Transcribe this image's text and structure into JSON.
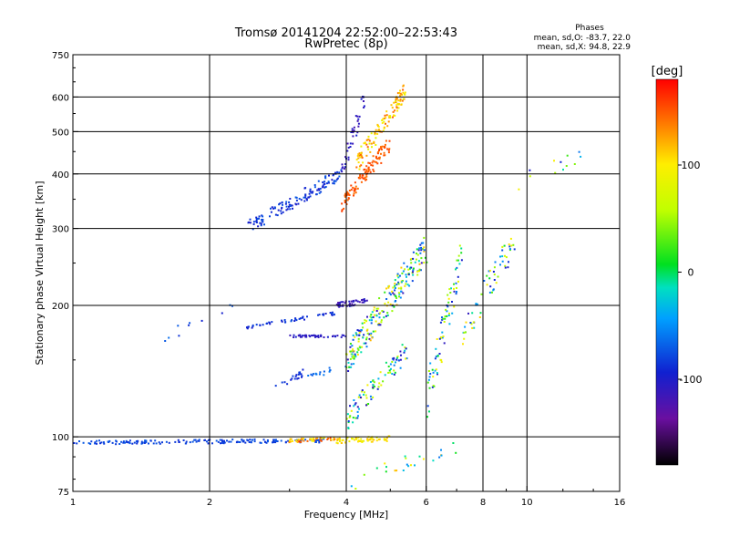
{
  "header": {
    "title": "Tromsø 20141204 22:52:00–22:53:43",
    "subtitle": "RwPretec (8p)",
    "phases_title": "Phases",
    "phases_o": "mean, sd,O: -83.7, 22.0",
    "phases_x": "mean, sd,X:  94.8, 22.9"
  },
  "colorbar": {
    "unit_label": "[deg]",
    "ticks": [
      {
        "value": 100,
        "label": "100"
      },
      {
        "value": 0,
        "label": "0"
      },
      {
        "value": -100,
        "label": "-100"
      }
    ],
    "range": [
      -180,
      180
    ]
  },
  "chart_data": {
    "type": "scatter",
    "xlabel": "Frequency [MHz]",
    "ylabel": "Stationary phase Virtual Height [km]",
    "x_scale": "log",
    "y_scale": "log",
    "xlim": [
      1,
      16
    ],
    "ylim": [
      75,
      750
    ],
    "grid": true,
    "x_ticks": [
      {
        "value": 1,
        "label": "1"
      },
      {
        "value": 2,
        "label": "2"
      },
      {
        "value": 4,
        "label": "4"
      },
      {
        "value": 6,
        "label": "6"
      },
      {
        "value": 8,
        "label": "8"
      },
      {
        "value": 10,
        "label": "10"
      },
      {
        "value": 16,
        "label": "16"
      }
    ],
    "y_ticks": [
      {
        "value": 75,
        "label": "75"
      },
      {
        "value": 100,
        "label": "100"
      },
      {
        "value": 200,
        "label": "200"
      },
      {
        "value": 300,
        "label": "300"
      },
      {
        "value": 400,
        "label": "400"
      },
      {
        "value": 500,
        "label": "500"
      },
      {
        "value": 600,
        "label": "600"
      },
      {
        "value": 750,
        "label": "750"
      }
    ],
    "x_gridlines": [
      2,
      4,
      6,
      8,
      10
    ],
    "y_gridlines": [
      100,
      200,
      300,
      400,
      500,
      600
    ],
    "series": [
      {
        "color_variable": "phase_deg",
        "clusters": [
          {
            "f1": 1.0,
            "f2": 3.6,
            "h1": 97,
            "h2": 98,
            "spread": 0.01,
            "phase": [
              -90,
              -70
            ],
            "n": 170
          },
          {
            "f1": 3.0,
            "f2": 3.8,
            "h1": 98,
            "h2": 99,
            "spread": 0.01,
            "phase": [
              90,
              170
            ],
            "n": 45
          },
          {
            "f1": 3.8,
            "f2": 5.0,
            "h1": 98,
            "h2": 99,
            "spread": 0.015,
            "phase": [
              80,
              120
            ],
            "n": 60
          },
          {
            "f1": 2.4,
            "f2": 3.9,
            "h1": 300,
            "h2": 400,
            "spread": 0.035,
            "phase": [
              -100,
              -70
            ],
            "n": 130
          },
          {
            "f1": 3.9,
            "f2": 4.4,
            "h1": 400,
            "h2": 600,
            "spread": 0.05,
            "phase": [
              -120,
              -95
            ],
            "n": 40
          },
          {
            "f1": 3.9,
            "f2": 5.0,
            "h1": 340,
            "h2": 470,
            "spread": 0.04,
            "phase": [
              140,
              160
            ],
            "n": 110
          },
          {
            "f1": 4.2,
            "f2": 5.4,
            "h1": 420,
            "h2": 620,
            "spread": 0.05,
            "phase": [
              80,
              150
            ],
            "n": 120
          },
          {
            "f1": 2.4,
            "f2": 3.8,
            "h1": 178,
            "h2": 192,
            "spread": 0.008,
            "phase": [
              -100,
              -75
            ],
            "n": 50
          },
          {
            "f1": 3.0,
            "f2": 4.0,
            "h1": 170,
            "h2": 170,
            "spread": 0.006,
            "phase": [
              -115,
              -95
            ],
            "n": 45
          },
          {
            "f1": 3.8,
            "f2": 4.5,
            "h1": 200,
            "h2": 205,
            "spread": 0.015,
            "phase": [
              -125,
              -100
            ],
            "n": 40
          },
          {
            "f1": 4.0,
            "f2": 6.0,
            "h1": 150,
            "h2": 270,
            "spread": 0.08,
            "phase": [
              -120,
              120
            ],
            "n": 230
          },
          {
            "f1": 2.8,
            "f2": 3.2,
            "h1": 130,
            "h2": 140,
            "spread": 0.02,
            "phase": [
              -95,
              -80
            ],
            "n": 20
          },
          {
            "f1": 3.3,
            "f2": 3.7,
            "h1": 138,
            "h2": 142,
            "spread": 0.015,
            "phase": [
              -70,
              -55
            ],
            "n": 15
          },
          {
            "f1": 4.0,
            "f2": 5.5,
            "h1": 110,
            "h2": 160,
            "spread": 0.06,
            "phase": [
              -120,
              100
            ],
            "n": 90
          },
          {
            "f1": 6.0,
            "f2": 7.2,
            "h1": 120,
            "h2": 260,
            "spread": 0.1,
            "phase": [
              -120,
              100
            ],
            "n": 80
          },
          {
            "f1": 7.2,
            "f2": 9.5,
            "h1": 170,
            "h2": 290,
            "spread": 0.08,
            "phase": [
              -110,
              110
            ],
            "n": 60
          },
          {
            "f1": 9.5,
            "f2": 14.0,
            "h1": 380,
            "h2": 450,
            "spread": 0.05,
            "phase": [
              -110,
              110
            ],
            "n": 12
          },
          {
            "f1": 1.6,
            "f2": 2.3,
            "h1": 170,
            "h2": 200,
            "spread": 0.03,
            "phase": [
              -100,
              -60
            ],
            "n": 10
          },
          {
            "f1": 4.0,
            "f2": 7.0,
            "h1": 78,
            "h2": 95,
            "spread": 0.04,
            "phase": [
              -60,
              120
            ],
            "n": 25
          }
        ]
      }
    ]
  }
}
